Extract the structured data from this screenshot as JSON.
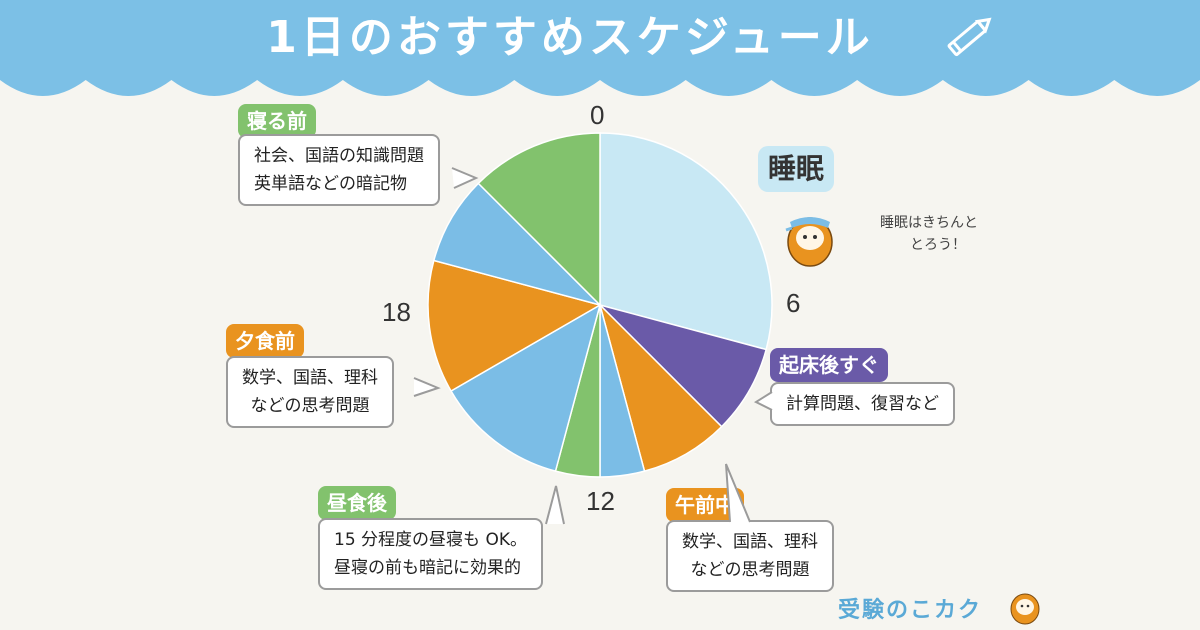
{
  "title": "1日のおすすめスケジュール",
  "colors": {
    "header": "#7cc0e6",
    "sleep": "#c8e8f4",
    "purple": "#6a5aa8",
    "orange": "#e9931f",
    "lightblue": "#7bbde6",
    "green": "#82c26d",
    "background": "#f6f5f0"
  },
  "chart_data": {
    "type": "pie",
    "unit": "hours",
    "start": 0,
    "total": 24,
    "ticks": [
      "0",
      "6",
      "12",
      "18"
    ],
    "slices": [
      {
        "from": 0,
        "to": 7,
        "color": "#c8e8f4"
      },
      {
        "from": 7,
        "to": 9,
        "color": "#6a5aa8"
      },
      {
        "from": 9,
        "to": 11,
        "color": "#e9931f"
      },
      {
        "from": 11,
        "to": 12,
        "color": "#7bbde6"
      },
      {
        "from": 12,
        "to": 13,
        "color": "#82c26d"
      },
      {
        "from": 13,
        "to": 16,
        "color": "#7bbde6"
      },
      {
        "from": 16,
        "to": 19,
        "color": "#e9931f"
      },
      {
        "from": 19,
        "to": 21,
        "color": "#7bbde6"
      },
      {
        "from": 21,
        "to": 24,
        "color": "#82c26d"
      }
    ]
  },
  "labels": {
    "sleep": "睡眠",
    "sleep_note": [
      "睡眠はきちんと",
      "とろう！"
    ],
    "wake": {
      "tag": "起床後すぐ",
      "lines": [
        "計算問題、復習など"
      ]
    },
    "morning": {
      "tag": "午前中",
      "lines": [
        "数学、国語、理科",
        "などの思考問題"
      ]
    },
    "lunch": {
      "tag": "昼食後",
      "lines": [
        "15 分程度の昼寝も OK。",
        "昼寝の前も暗記に効果的"
      ]
    },
    "dinner": {
      "tag": "夕食前",
      "lines": [
        "数学、国語、理科",
        "などの思考問題"
      ]
    },
    "bed": {
      "tag": "寝る前",
      "lines": [
        "社会、国語の知識問題",
        "英単語などの暗記物"
      ]
    }
  },
  "footer": {
    "logo": "受験のこカク"
  }
}
